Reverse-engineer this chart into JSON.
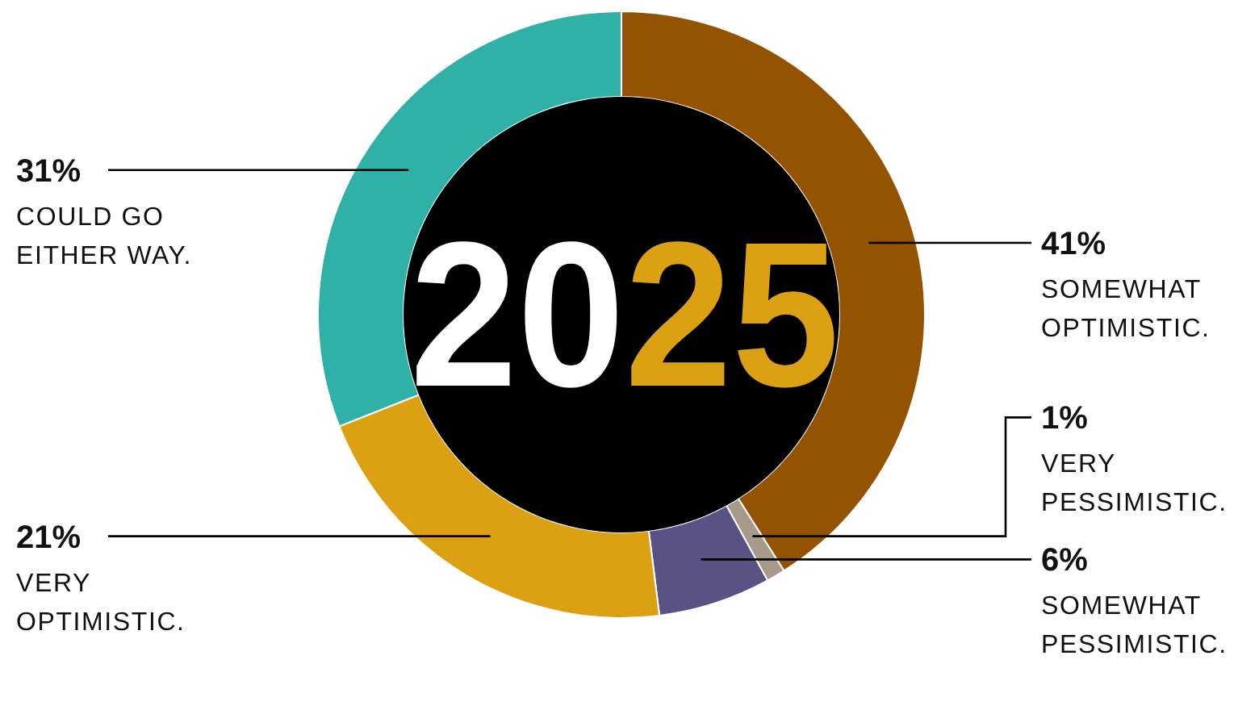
{
  "chart_data": {
    "type": "donut",
    "categories": [
      "SOMEWHAT OPTIMISTIC.",
      "VERY PESSIMISTIC.",
      "SOMEWHAT PESSIMISTIC.",
      "VERY OPTIMISTIC.",
      "COULD GO EITHER WAY."
    ],
    "values": [
      41,
      1,
      6,
      21,
      31
    ],
    "value_labels": [
      "41%",
      "1%",
      "6%",
      "21%",
      "31%"
    ],
    "colors": [
      "#945300",
      "#a89a8b",
      "#5a5284",
      "#dba113",
      "#2fb1a7"
    ],
    "annotations": [
      "2025"
    ]
  }
}
